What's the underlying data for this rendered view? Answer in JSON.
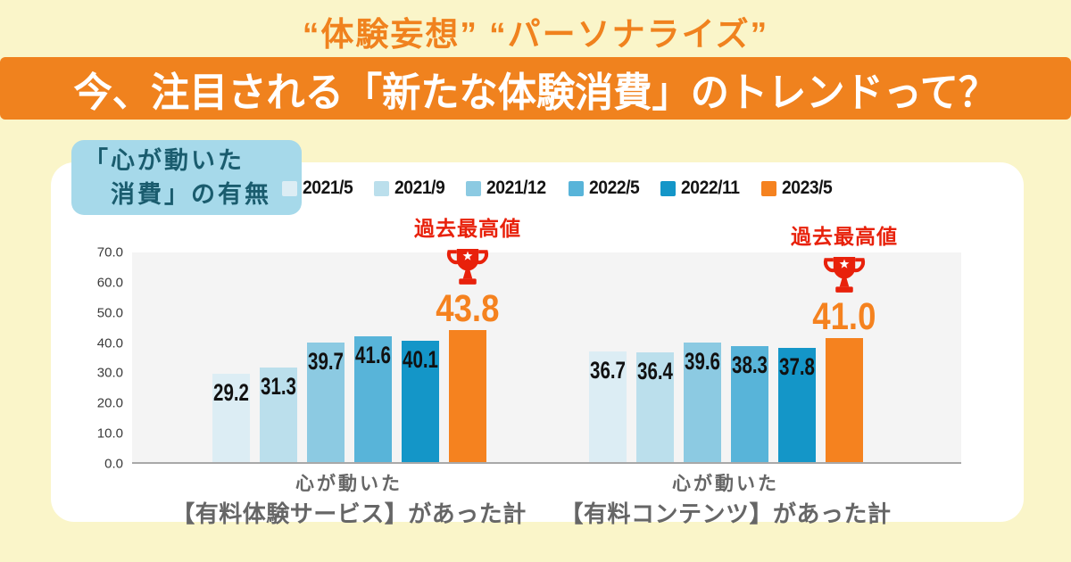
{
  "header": {
    "tagline": "“体験妄想” “パーソナライズ”",
    "banner_title": "今、注目される「新たな体験消費」のトレンドって？"
  },
  "card": {
    "badge": {
      "line1": "「心が動いた",
      "line2": "消費」の有無"
    }
  },
  "chart_data": {
    "type": "bar",
    "title": "「心が動いた消費」の有無",
    "legend_position": "top",
    "grid": false,
    "ylim": [
      0,
      70
    ],
    "yticks": [
      70.0,
      60.0,
      50.0,
      40.0,
      30.0,
      20.0,
      10.0,
      0.0
    ],
    "categories": [
      "心が動いた【有料体験サービス】があった計",
      "心が動いた【有料コンテンツ】があった計"
    ],
    "category_lines": [
      [
        "心が動いた",
        "【有料体験サービス】があった計"
      ],
      [
        "心が動いた",
        "【有料コンテンツ】があった計"
      ]
    ],
    "series": [
      {
        "name": "2021/5",
        "color": "#dcedf4",
        "values": [
          29.2,
          36.7
        ]
      },
      {
        "name": "2021/9",
        "color": "#bbdfec",
        "values": [
          31.3,
          36.4
        ]
      },
      {
        "name": "2021/12",
        "color": "#8ccae2",
        "values": [
          39.7,
          39.6
        ]
      },
      {
        "name": "2022/5",
        "color": "#58b4d9",
        "values": [
          41.6,
          38.3
        ]
      },
      {
        "name": "2022/11",
        "color": "#1496c8",
        "values": [
          40.1,
          37.8
        ]
      },
      {
        "name": "2023/5",
        "color": "#f5821f",
        "values": [
          43.8,
          41.0
        ],
        "highlight": true
      }
    ],
    "peak_annotation": {
      "label": "過去最高値",
      "applies_to": "2023/5",
      "icon": "trophy"
    }
  },
  "colors": {
    "background": "#faf5c9",
    "banner": "#f0821e",
    "card": "#ffffff",
    "badge_bg": "#a6d9ea",
    "badge_text": "#1a5c6e",
    "plot_bg": "#f4f4f4",
    "peak_red": "#e8210b",
    "highlight_orange": "#f5821f"
  }
}
